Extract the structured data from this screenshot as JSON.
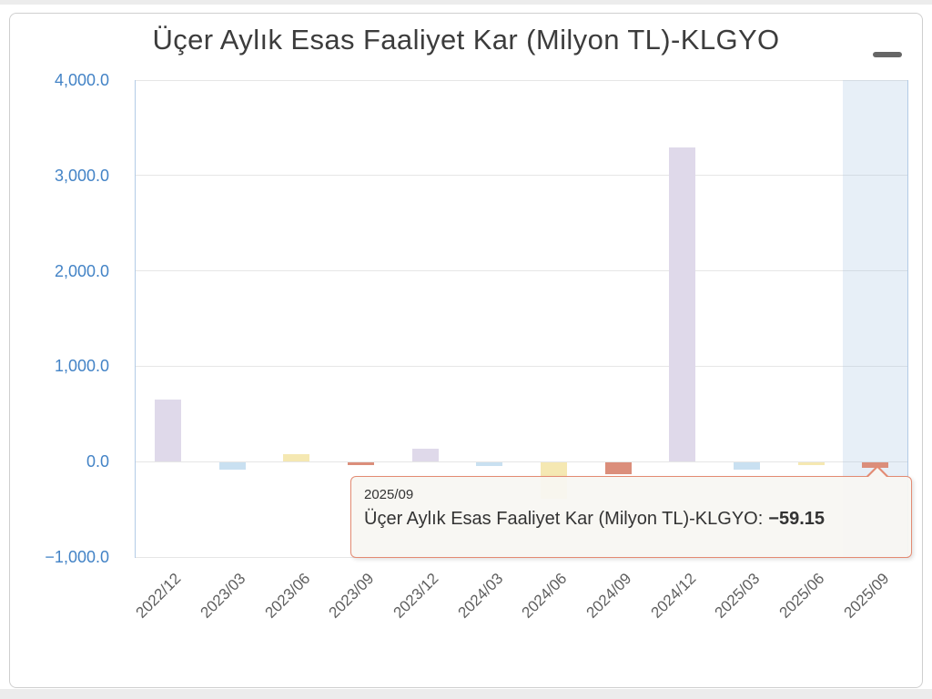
{
  "page_title": "Üçer Aylık Esas Faaliyet Kar (Milyon TL)-KLGYO",
  "export_menu": {
    "icon": "hamburger-menu-icon"
  },
  "chart_data": {
    "type": "bar",
    "title": "Üçer Aylık Esas Faaliyet Kar (Milyon TL)-KLGYO",
    "series_name": "Üçer Aylık Esas Faaliyet Kar (Milyon TL)-KLGYO",
    "categories": [
      "2022/12",
      "2023/03",
      "2023/06",
      "2023/09",
      "2023/12",
      "2024/03",
      "2024/06",
      "2024/09",
      "2024/12",
      "2025/03",
      "2025/06",
      "2025/09"
    ],
    "values": [
      655,
      -72,
      75,
      -28,
      140,
      -38,
      -380,
      -122,
      3290,
      -76,
      -28,
      -59.15
    ],
    "unit": "Milyon TL",
    "ylim": [
      -1000,
      4000
    ],
    "yticks": [
      {
        "value": 4000,
        "label": "4,000.0"
      },
      {
        "value": 3000,
        "label": "3,000.0"
      },
      {
        "value": 2000,
        "label": "2,000.0"
      },
      {
        "value": 1000,
        "label": "1,000.0"
      },
      {
        "value": 0,
        "label": "0.0"
      },
      {
        "value": -1000,
        "label": "−1,000.0"
      }
    ],
    "grid": true,
    "legend": "none",
    "hovered_index": 11,
    "palette": [
      "#dfd9ea",
      "#c9e0f1",
      "#f5e8b2",
      "#db8e7b"
    ],
    "colors": {
      "y_label": "#4383c6",
      "x_label": "#5f5f5f",
      "gridline": "#e6e6e6",
      "axis_border": "#b3cbe6",
      "hover_band": "rgba(160,190,225,0.25)",
      "tooltip_border": "#e38b73"
    }
  },
  "tooltip": {
    "header": "2025/09",
    "series_label": "Üçer Aylık Esas Faaliyet Kar (Milyon TL)-KLGYO:",
    "value": "−59.15"
  }
}
